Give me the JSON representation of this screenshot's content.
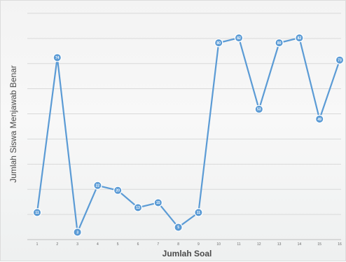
{
  "chart_data": {
    "type": "line",
    "title": "",
    "xlabel": "Jumlah Soal",
    "ylabel": "Jumlah Siswa Menjawab Benar",
    "categories": [
      "1",
      "2",
      "3",
      "4",
      "5",
      "6",
      "7",
      "8",
      "9",
      "10",
      "11",
      "12",
      "13",
      "14",
      "15",
      "16"
    ],
    "series": [
      {
        "name": "",
        "values": [
          11,
          74,
          3,
          22,
          20,
          13,
          15,
          5,
          11,
          80,
          82,
          53,
          80,
          82,
          49,
          73
        ],
        "labels": [
          "11",
          "74",
          "3",
          "22",
          "20",
          "13",
          "15",
          "5",
          "11",
          "80",
          "82",
          "53",
          "80",
          "82",
          "49",
          "73"
        ]
      }
    ],
    "ylim": [
      0,
      92
    ],
    "grid": true,
    "legend": "none",
    "colors": {
      "line": "#5b9bd5",
      "marker": "#5b9bd5",
      "grid": "#d9d9d9",
      "axis": "#bfbfbf"
    }
  }
}
